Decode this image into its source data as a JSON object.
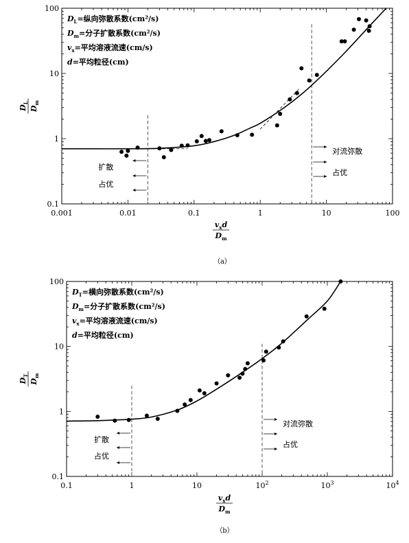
{
  "chart_data": [
    {
      "type": "scatter",
      "caption": "（a）",
      "xscale": "log",
      "yscale": "log",
      "xlim": [
        0.001,
        100
      ],
      "ylim": [
        0.1,
        100
      ],
      "xticks": [
        "0.001",
        "0.01",
        "0.1",
        "1",
        "10",
        "100"
      ],
      "yticks": [
        "0.1",
        "1",
        "10",
        "100"
      ],
      "xlabel": {
        "num": "v",
        "numsub": "x",
        "numtail": "d",
        "den": "D",
        "densub": "m"
      },
      "ylabel": {
        "num": "D",
        "numsub": "L",
        "den": "D",
        "densub": "m"
      },
      "legend": [
        {
          "sym": "D",
          "sub": "L",
          "text": "=纵向弥散系数(cm²/s)"
        },
        {
          "sym": "D",
          "sub": "m",
          "text": "=分子扩散系数(cm²/s)"
        },
        {
          "sym": "v",
          "sub": "x",
          "text": "=平均溶液流速(cm/s)"
        },
        {
          "sym": "d",
          "sub": "",
          "text": "=平均粒径(cm)"
        }
      ],
      "annotations": {
        "left": [
          "扩散",
          "占优"
        ],
        "right": [
          "对流弥散",
          "占优"
        ]
      },
      "vlines": [
        0.02,
        6
      ],
      "points": [
        [
          0.008,
          0.63
        ],
        [
          0.0095,
          0.55
        ],
        [
          0.01,
          0.65
        ],
        [
          0.014,
          0.73
        ],
        [
          0.03,
          0.71
        ],
        [
          0.035,
          0.52
        ],
        [
          0.045,
          0.67
        ],
        [
          0.065,
          0.78
        ],
        [
          0.08,
          0.79
        ],
        [
          0.11,
          0.91
        ],
        [
          0.13,
          1.1
        ],
        [
          0.15,
          0.92
        ],
        [
          0.17,
          0.95
        ],
        [
          0.26,
          1.3
        ],
        [
          0.45,
          1.13
        ],
        [
          0.75,
          1.15
        ],
        [
          1.8,
          1.6
        ],
        [
          2.0,
          2.4
        ],
        [
          2.8,
          4.0
        ],
        [
          3.6,
          5.0
        ],
        [
          4.2,
          12.0
        ],
        [
          5.5,
          7.8
        ],
        [
          7.2,
          9.5
        ],
        [
          17,
          31
        ],
        [
          19,
          31
        ],
        [
          26,
          47
        ],
        [
          31,
          68
        ],
        [
          40,
          65
        ],
        [
          44,
          45
        ],
        [
          45,
          53
        ]
      ],
      "curve": [
        [
          0.001,
          0.7
        ],
        [
          0.003,
          0.7
        ],
        [
          0.01,
          0.7
        ],
        [
          0.03,
          0.71
        ],
        [
          0.1,
          0.78
        ],
        [
          0.2,
          0.9
        ],
        [
          0.4,
          1.12
        ],
        [
          0.7,
          1.45
        ],
        [
          1,
          1.72
        ],
        [
          2,
          2.7
        ],
        [
          4,
          4.6
        ],
        [
          6,
          6.6
        ],
        [
          10,
          10.8
        ],
        [
          20,
          22
        ],
        [
          50,
          60
        ],
        [
          80,
          100
        ]
      ],
      "dashed_segments": [
        [
          [
            0.02,
            0.7
          ],
          [
            0.08,
            0.7
          ]
        ],
        [
          [
            1.0,
            1.4
          ],
          [
            4.0,
            6.0
          ]
        ]
      ]
    },
    {
      "type": "scatter",
      "caption": "（b）",
      "xscale": "log",
      "yscale": "log",
      "xlim": [
        0.1,
        10000
      ],
      "ylim": [
        0.1,
        100
      ],
      "xticks": [
        {
          "base": "0.1",
          "exp": ""
        },
        {
          "base": "1",
          "exp": ""
        },
        {
          "base": "10",
          "exp": ""
        },
        {
          "base": "10",
          "exp": "2"
        },
        {
          "base": "10",
          "exp": "3"
        },
        {
          "base": "10",
          "exp": "4"
        }
      ],
      "yticks": [
        "0.1",
        "1",
        "10",
        "100"
      ],
      "xlabel": {
        "num": "v",
        "numsub": "x",
        "numtail": "d",
        "den": "D",
        "densub": "m"
      },
      "ylabel": {
        "num": "D",
        "numsub": "T",
        "den": "D",
        "densub": "m"
      },
      "legend": [
        {
          "sym": "D",
          "sub": "T",
          "text": "=横向弥散系数(cm²/s)"
        },
        {
          "sym": "D",
          "sub": "m",
          "text": "=分子扩散系数(cm²/s)"
        },
        {
          "sym": "v",
          "sub": "x",
          "text": "=平均溶液流速(cm/s)"
        },
        {
          "sym": "d",
          "sub": "",
          "text": "=平均粒径(cm)"
        }
      ],
      "annotations": {
        "left": [
          "扩散",
          "占优"
        ],
        "right": [
          "对流弥散",
          "占优"
        ]
      },
      "vlines": [
        1,
        100
      ],
      "points": [
        [
          0.3,
          0.83
        ],
        [
          0.55,
          0.72
        ],
        [
          0.9,
          0.74
        ],
        [
          1.7,
          0.86
        ],
        [
          2.5,
          0.77
        ],
        [
          5,
          1.02
        ],
        [
          6.5,
          1.28
        ],
        [
          8,
          1.5
        ],
        [
          11,
          2.1
        ],
        [
          13,
          1.9
        ],
        [
          20,
          2.7
        ],
        [
          30,
          3.6
        ],
        [
          45,
          3.3
        ],
        [
          50,
          3.8
        ],
        [
          55,
          4.5
        ],
        [
          60,
          5.5
        ],
        [
          105,
          6.1
        ],
        [
          115,
          8.3
        ],
        [
          180,
          9.6
        ],
        [
          210,
          12
        ],
        [
          480,
          29
        ],
        [
          900,
          38
        ],
        [
          1600,
          100
        ]
      ],
      "curve": [
        [
          0.1,
          0.71
        ],
        [
          0.3,
          0.72
        ],
        [
          1,
          0.76
        ],
        [
          2,
          0.82
        ],
        [
          5,
          1.05
        ],
        [
          10,
          1.45
        ],
        [
          20,
          2.2
        ],
        [
          50,
          4.0
        ],
        [
          100,
          6.5
        ],
        [
          200,
          11.2
        ],
        [
          500,
          26
        ],
        [
          1000,
          50
        ],
        [
          1600,
          100
        ]
      ],
      "dashed_segments": []
    }
  ]
}
